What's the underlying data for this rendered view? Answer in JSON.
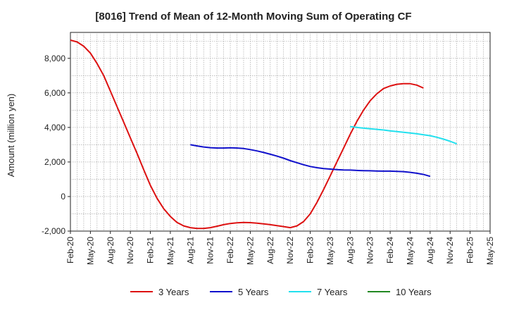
{
  "chart_data": {
    "type": "line",
    "title": "[8016]  Trend of Mean of 12-Month Moving Sum of Operating CF",
    "xlabel": "",
    "ylabel": "Amount (million yen)",
    "ylim": [
      -2000,
      9500
    ],
    "yticks": [
      -2000,
      0,
      2000,
      4000,
      6000,
      8000
    ],
    "ytick_labels": [
      "-2,000",
      "0",
      "2,000",
      "4,000",
      "6,000",
      "8,000"
    ],
    "x_tick_labels": [
      "Feb-20",
      "May-20",
      "Aug-20",
      "Nov-20",
      "Feb-21",
      "May-21",
      "Aug-21",
      "Nov-21",
      "Feb-22",
      "May-22",
      "Aug-22",
      "Nov-22",
      "Feb-23",
      "May-23",
      "Aug-23",
      "Nov-23",
      "Feb-24",
      "May-24",
      "Aug-24",
      "Nov-24",
      "Feb-25",
      "May-25"
    ],
    "x_range_months": [
      0,
      63
    ],
    "grid": true,
    "legend_position": "bottom",
    "series": [
      {
        "name": "3 Years",
        "color": "#dd1111",
        "start_month": 0,
        "values": [
          9050,
          8950,
          8700,
          8300,
          7700,
          7000,
          6100,
          5200,
          4300,
          3400,
          2500,
          1550,
          650,
          -100,
          -700,
          -1150,
          -1500,
          -1700,
          -1800,
          -1850,
          -1850,
          -1800,
          -1720,
          -1630,
          -1560,
          -1520,
          -1500,
          -1510,
          -1540,
          -1580,
          -1630,
          -1680,
          -1740,
          -1800,
          -1700,
          -1450,
          -1000,
          -350,
          400,
          1200,
          2000,
          2800,
          3600,
          4350,
          5000,
          5550,
          5950,
          6250,
          6400,
          6500,
          6530,
          6530,
          6450,
          6280
        ]
      },
      {
        "name": "5 Years",
        "color": "#1111cc",
        "start_month": 18,
        "values": [
          3000,
          2930,
          2870,
          2830,
          2810,
          2810,
          2820,
          2810,
          2780,
          2720,
          2640,
          2550,
          2450,
          2340,
          2220,
          2080,
          1960,
          1840,
          1740,
          1670,
          1620,
          1590,
          1560,
          1540,
          1530,
          1510,
          1500,
          1490,
          1480,
          1470,
          1470,
          1460,
          1440,
          1400,
          1350,
          1280,
          1170
        ]
      },
      {
        "name": "7 Years",
        "color": "#22e0ee",
        "start_month": 42,
        "values": [
          4050,
          4000,
          3960,
          3920,
          3890,
          3850,
          3800,
          3760,
          3720,
          3680,
          3630,
          3580,
          3520,
          3430,
          3320,
          3200,
          3050
        ]
      },
      {
        "name": "10 Years",
        "color": "#228822",
        "start_month": 0,
        "values": []
      }
    ]
  }
}
